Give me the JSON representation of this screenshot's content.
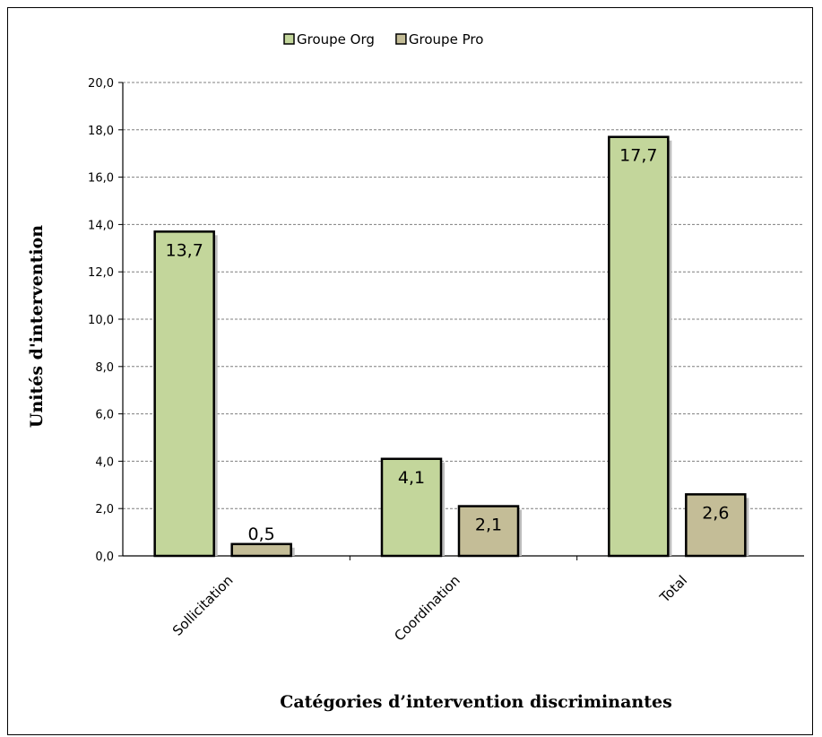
{
  "chart_data": {
    "type": "bar",
    "title": "",
    "xlabel": "Catégories d’intervention discriminantes",
    "ylabel": "Unités d'intervention",
    "categories": [
      "Sollicitation",
      "Coordination",
      "Total"
    ],
    "series": [
      {
        "name": "Groupe Org",
        "values": [
          13.7,
          4.1,
          17.7
        ],
        "labels": [
          "13,7",
          "4,1",
          "17,7"
        ],
        "color": "#c3d69b"
      },
      {
        "name": "Groupe Pro",
        "values": [
          0.5,
          2.1,
          2.6
        ],
        "labels": [
          "0,5",
          "2,1",
          "2,6"
        ],
        "color": "#c4bd97"
      }
    ],
    "ylim": [
      0,
      20
    ],
    "yticks": [
      0,
      2,
      4,
      6,
      8,
      10,
      12,
      14,
      16,
      18,
      20
    ],
    "ytick_labels": [
      "0,0",
      "2,0",
      "4,0",
      "6,0",
      "8,0",
      "10,0",
      "12,0",
      "14,0",
      "16,0",
      "18,0",
      "20,0"
    ],
    "grid": true,
    "legend_position": "top"
  }
}
